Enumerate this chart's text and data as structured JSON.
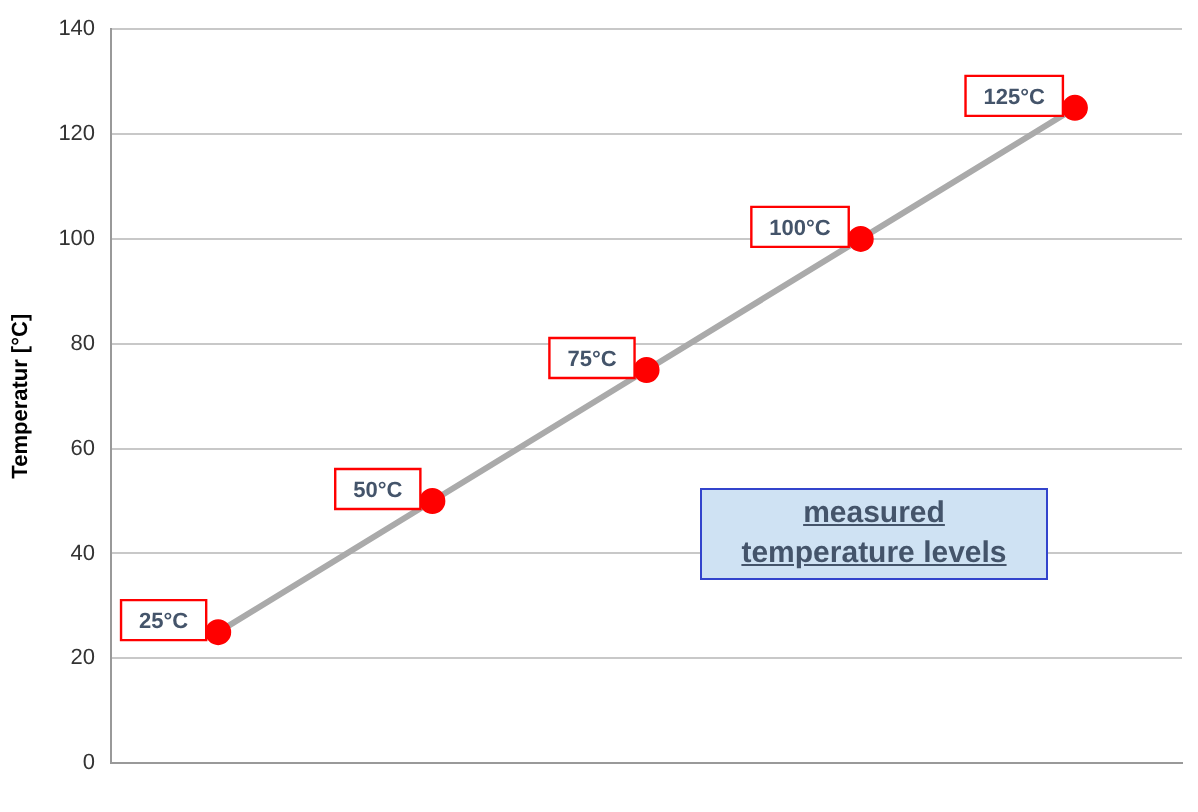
{
  "chart_data": {
    "type": "line",
    "ylabel": "Temperatur [°C]",
    "categories": [
      null,
      null,
      null,
      null,
      null
    ],
    "series": [
      {
        "color": "#aaaaaa",
        "values": [
          25,
          50,
          75,
          100,
          125
        ],
        "value_labels": [
          "25°C",
          "50°C",
          "75°C",
          "100°C",
          "125°C"
        ],
        "colors": [
          "#ff0000",
          "#ff0000",
          "#ff0000",
          "#ff0000",
          "#ff0000"
        ]
      }
    ],
    "marker": "circle",
    "ylim": [
      0,
      140
    ],
    "yticks": [
      0,
      20,
      40,
      60,
      80,
      100,
      120,
      140
    ],
    "grid": "y",
    "legend": false,
    "annotations": [
      "measured temperature levels"
    ]
  }
}
